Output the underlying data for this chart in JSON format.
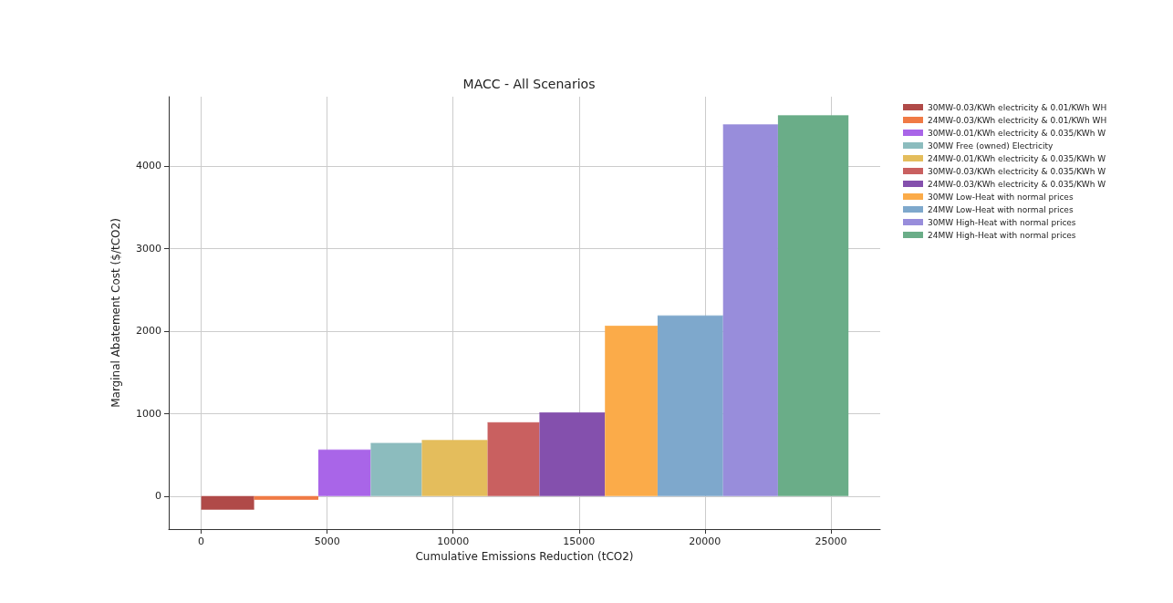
{
  "chart_data": {
    "type": "area",
    "title": "MACC - All Scenarios",
    "xlabel": "Cumulative Emissions Reduction (tCO2)",
    "ylabel": "Marginal Abatement Cost ($/tCO2)",
    "xlim": [
      -1290,
      26960
    ],
    "xticks": [
      0,
      5000,
      10000,
      15000,
      20000,
      25000
    ],
    "ylim": [
      -400,
      4840
    ],
    "yticks": [
      0,
      1000,
      2000,
      3000,
      4000
    ],
    "grid": true,
    "legend": "top right",
    "series": [
      {
        "name": "30MW-0.03/KWh electricity & 0.01/KWh WH",
        "color": "#b04a48",
        "x": [
          0,
          2100
        ],
        "values": [
          -160,
          -160
        ]
      },
      {
        "name": "24MW-0.03/KWh electricity & 0.01/KWh WH",
        "color": "#f07a45",
        "x": [
          2100,
          4650
        ],
        "values": [
          -40,
          -40
        ]
      },
      {
        "name": "30MW-0.01/KWh electricity & 0.035/KWh W",
        "color": "#a965e8",
        "x": [
          4650,
          6730
        ],
        "values": [
          560,
          560
        ]
      },
      {
        "name": "30MW Free (owned) Electricity",
        "color": "#8cbcbe",
        "x": [
          6730,
          8760
        ],
        "values": [
          640,
          640
        ]
      },
      {
        "name": "24MW-0.01/KWh electricity & 0.035/KWh W",
        "color": "#e4bd5c",
        "x": [
          8760,
          11370
        ],
        "values": [
          675,
          675
        ]
      },
      {
        "name": "30MW-0.03/KWh electricity & 0.035/KWh W",
        "color": "#c96060",
        "x": [
          11370,
          13430
        ],
        "values": [
          890,
          890
        ]
      },
      {
        "name": "24MW-0.03/KWh electricity & 0.035/KWh W",
        "color": "#8450ad",
        "x": [
          13430,
          16030
        ],
        "values": [
          1010,
          1010
        ]
      },
      {
        "name": "30MW Low-Heat with normal prices",
        "color": "#fbab49",
        "x": [
          16030,
          18120
        ],
        "values": [
          2060,
          2060
        ]
      },
      {
        "name": "24MW Low-Heat with normal prices",
        "color": "#7ea8cc",
        "x": [
          18120,
          20720
        ],
        "values": [
          2185,
          2185
        ]
      },
      {
        "name": "30MW High-Heat with normal prices",
        "color": "#988ddb",
        "x": [
          20720,
          22900
        ],
        "values": [
          4500,
          4500
        ]
      },
      {
        "name": "24MW High-Heat with normal prices",
        "color": "#6aad88",
        "x": [
          22900,
          25700
        ],
        "values": [
          4610,
          4610
        ]
      }
    ]
  }
}
